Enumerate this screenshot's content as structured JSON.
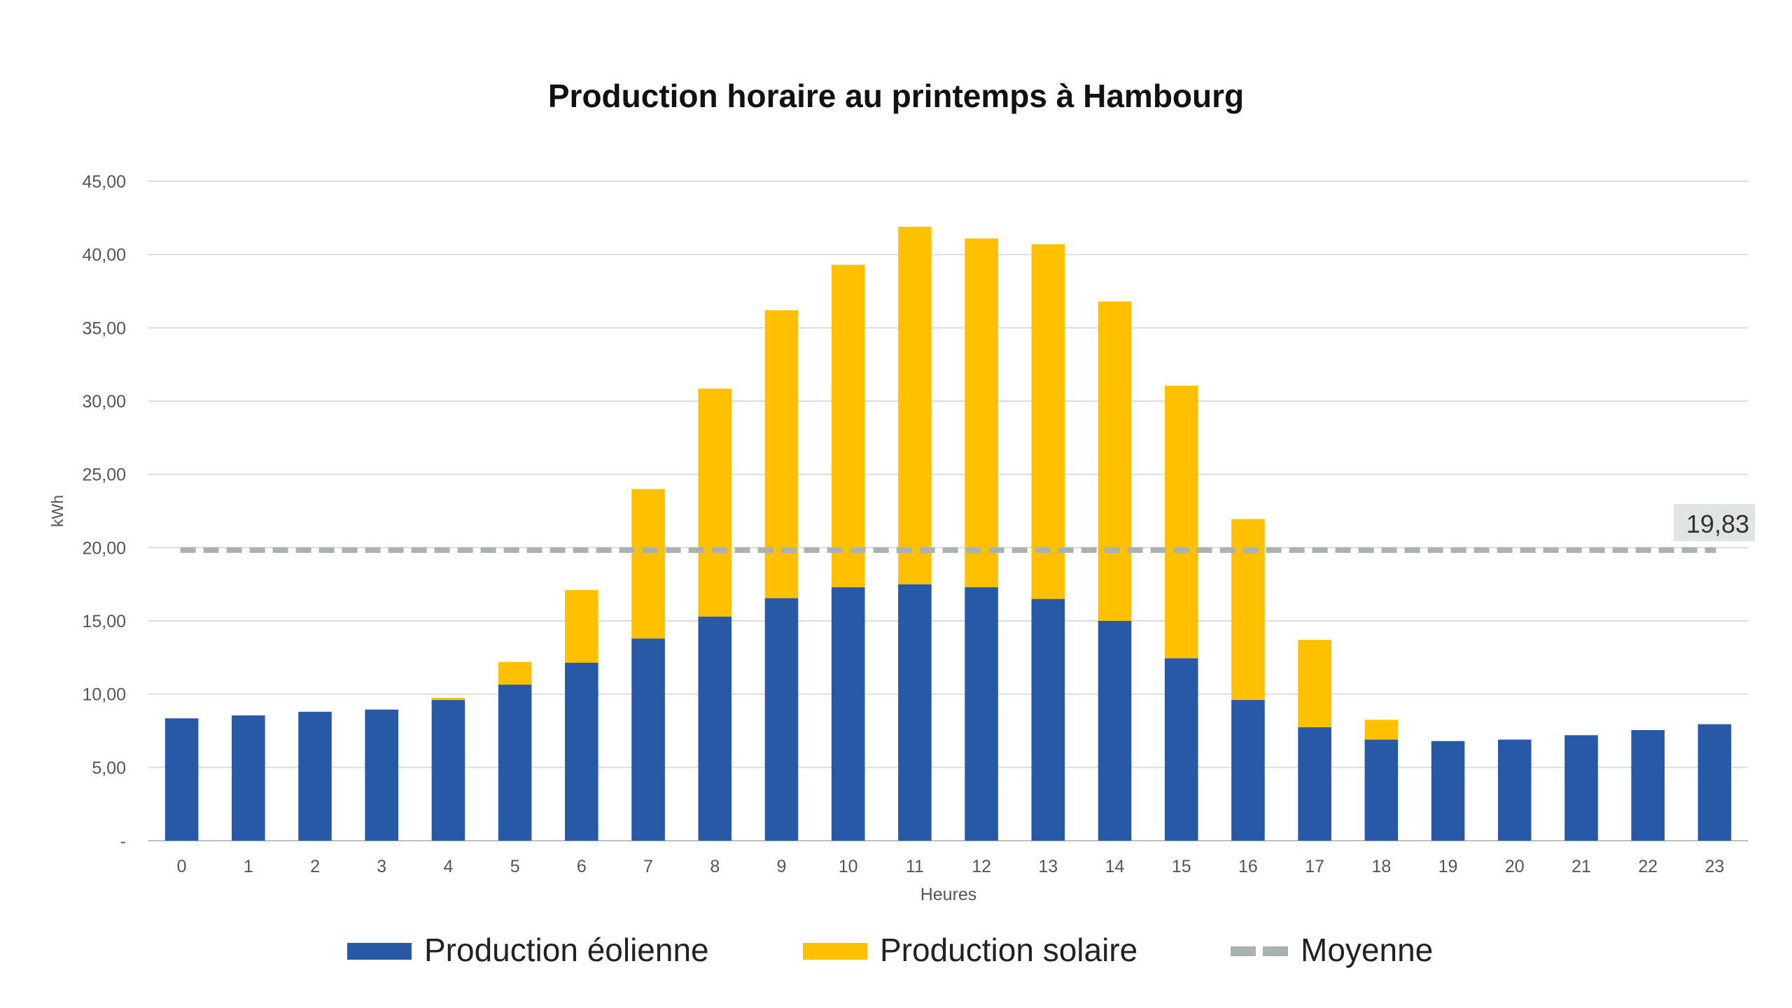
{
  "chart_data": {
    "type": "bar",
    "stacked": true,
    "title": "Production horaire au printemps à Hambourg",
    "xlabel": "Heures",
    "ylabel": "kWh",
    "ylim": [
      0,
      45
    ],
    "yticks": [
      "-",
      "5,00",
      "10,00",
      "15,00",
      "20,00",
      "25,00",
      "30,00",
      "35,00",
      "40,00",
      "45,00"
    ],
    "categories": [
      "0",
      "1",
      "2",
      "3",
      "4",
      "5",
      "6",
      "7",
      "8",
      "9",
      "10",
      "11",
      "12",
      "13",
      "14",
      "15",
      "16",
      "17",
      "18",
      "19",
      "20",
      "21",
      "22",
      "23"
    ],
    "series": [
      {
        "name": "Production éolienne",
        "color": "#2859A6",
        "values": [
          8.35,
          8.55,
          8.8,
          8.95,
          9.6,
          10.65,
          12.15,
          13.8,
          15.3,
          16.55,
          17.3,
          17.5,
          17.3,
          16.5,
          15.0,
          12.45,
          9.6,
          7.75,
          6.9,
          6.8,
          6.9,
          7.2,
          7.55,
          7.95
        ]
      },
      {
        "name": "Production solaire",
        "color": "#FFC000",
        "values": [
          0,
          0,
          0,
          0,
          0.15,
          1.55,
          4.95,
          10.2,
          15.55,
          19.65,
          22.0,
          24.4,
          23.8,
          24.2,
          21.8,
          18.6,
          12.35,
          5.95,
          1.35,
          0,
          0,
          0,
          0,
          0
        ]
      }
    ],
    "average": {
      "name": "Moyenne",
      "value": 19.83,
      "label": "19,83",
      "color": "#A9B1B1"
    },
    "legend_position": "bottom",
    "grid": true
  }
}
